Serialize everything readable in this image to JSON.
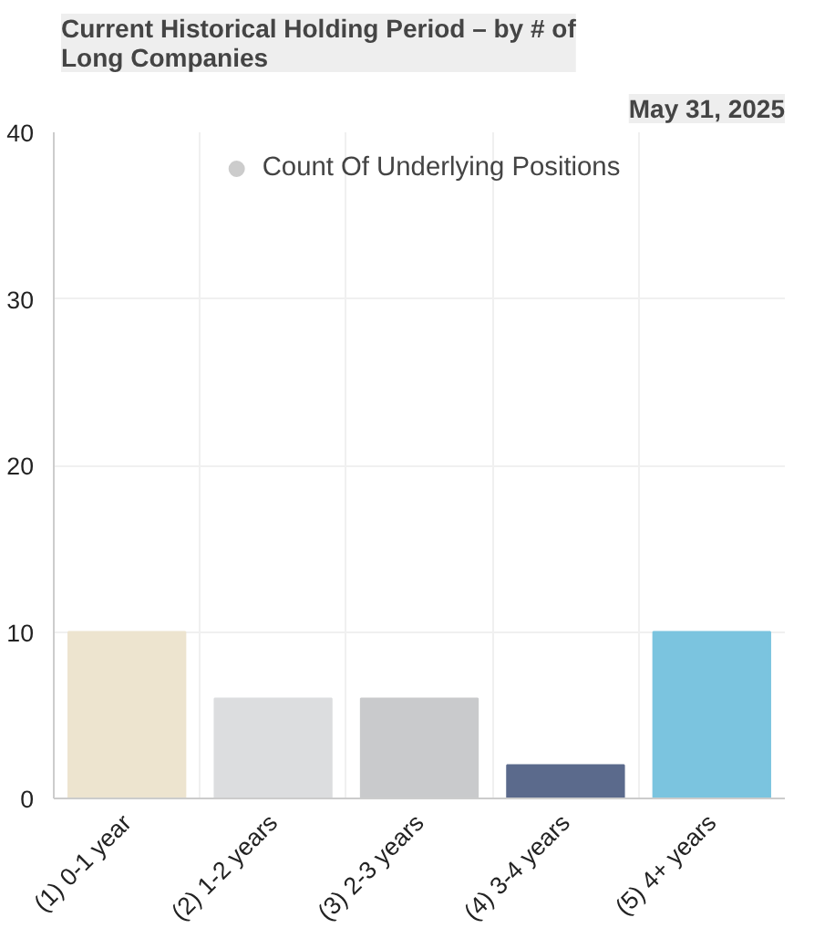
{
  "chart_data": {
    "type": "bar",
    "title": "Current Historical Holding Period – by # of Long Companies",
    "annotations": [
      "May 31, 2025"
    ],
    "categories": [
      "(1) 0-1 year",
      "(2) 1-2 years",
      "(3) 2-3 years",
      "(4) 3-4 years",
      "(5) 4+ years"
    ],
    "series": [
      {
        "name": "Count Of Underlying Positions",
        "color": "#cccccc",
        "colors": [
          "#ede4cf",
          "#dcdddf",
          "#c9cacc",
          "#5b6a8c",
          "#7bc4df"
        ],
        "values": [
          10,
          6,
          6,
          2,
          10
        ]
      }
    ],
    "ylim": [
      0,
      40
    ],
    "yticks": [
      0,
      10,
      20,
      30,
      40
    ],
    "grid": true,
    "legend": "top"
  }
}
